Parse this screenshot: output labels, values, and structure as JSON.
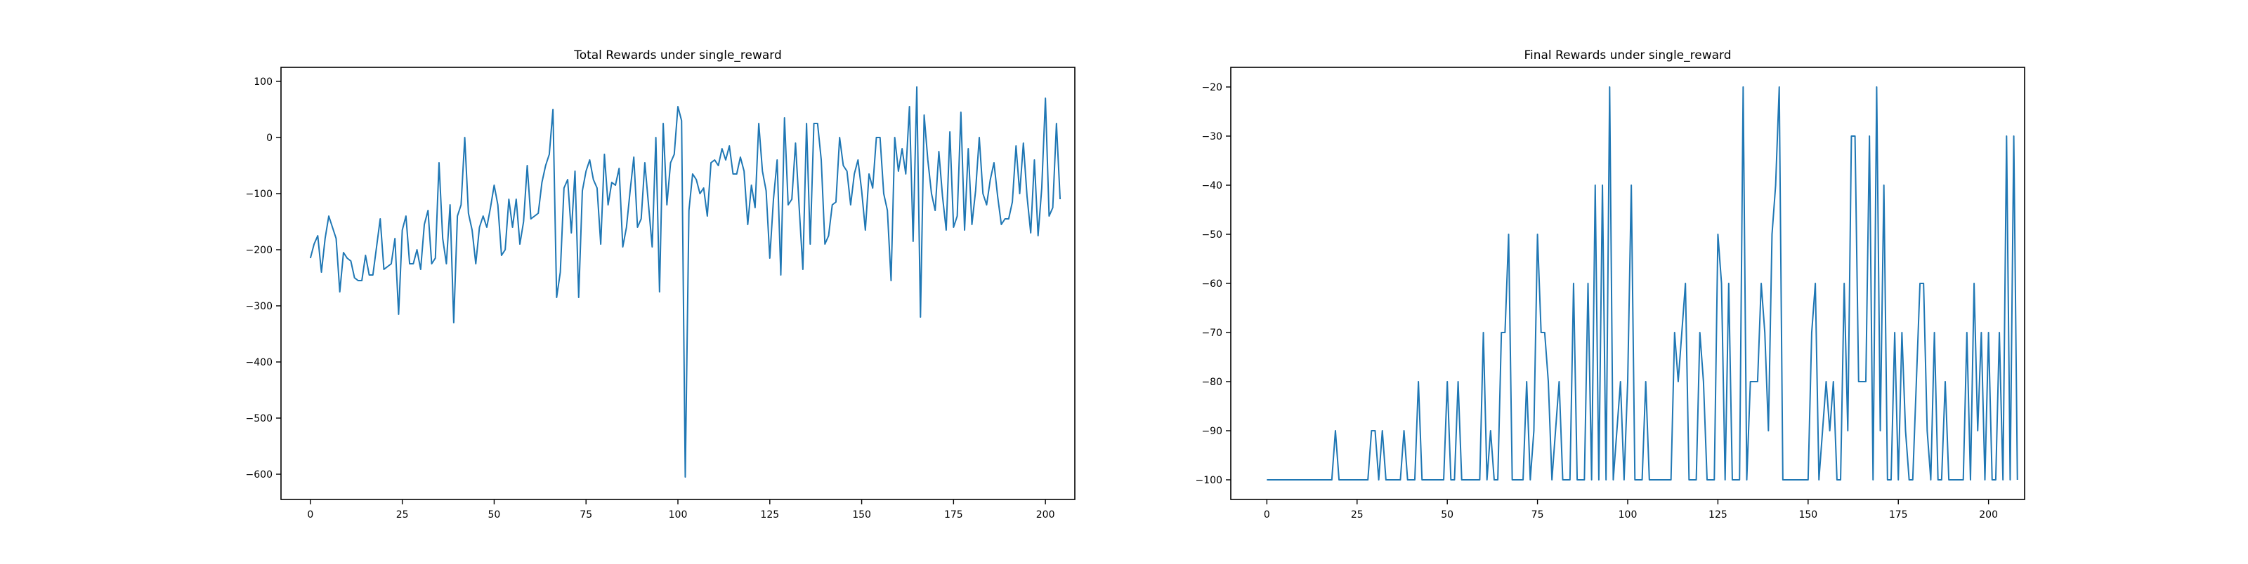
{
  "chart_data": [
    {
      "type": "line",
      "title": "Total Rewards under single_reward",
      "xlabel": "",
      "ylabel": "",
      "xlim": [
        -8,
        208
      ],
      "ylim": [
        -645,
        125
      ],
      "xticks": [
        0,
        25,
        50,
        75,
        100,
        125,
        150,
        175,
        200
      ],
      "xtick_labels": [
        "0",
        "25",
        "50",
        "75",
        "100",
        "125",
        "150",
        "175",
        "200"
      ],
      "yticks": [
        -600,
        -500,
        -400,
        -300,
        -200,
        -100,
        0,
        100
      ],
      "ytick_labels": [
        "−600",
        "−500",
        "−400",
        "−300",
        "−200",
        "−100",
        "0",
        "100"
      ],
      "grid": false,
      "color": "#1f77b4",
      "series": [
        {
          "x_start": 0,
          "values": [
            -215,
            -190,
            -175,
            -240,
            -180,
            -140,
            -160,
            -180,
            -275,
            -205,
            -215,
            -220,
            -250,
            -255,
            -255,
            -210,
            -245,
            -245,
            -195,
            -145,
            -235,
            -230,
            -225,
            -180,
            -315,
            -165,
            -140,
            -225,
            -225,
            -200,
            -235,
            -155,
            -130,
            -225,
            -215,
            -45,
            -180,
            -225,
            -120,
            -330,
            -140,
            -120,
            0,
            -135,
            -165,
            -225,
            -160,
            -140,
            -160,
            -125,
            -85,
            -120,
            -210,
            -200,
            -110,
            -160,
            -110,
            -190,
            -150,
            -50,
            -145,
            -140,
            -135,
            -80,
            -50,
            -30,
            50,
            -285,
            -240,
            -90,
            -75,
            -170,
            -60,
            -285,
            -95,
            -60,
            -40,
            -75,
            -90,
            -190,
            -30,
            -120,
            -80,
            -85,
            -55,
            -195,
            -160,
            -95,
            -35,
            -160,
            -145,
            -45,
            -120,
            -195,
            0,
            -275,
            25,
            -120,
            -45,
            -30,
            55,
            30,
            -605,
            -130,
            -65,
            -75,
            -100,
            -90,
            -140,
            -45,
            -40,
            -50,
            -20,
            -40,
            -15,
            -65,
            -65,
            -35,
            -60,
            -155,
            -85,
            -125,
            25,
            -60,
            -95,
            -215,
            -110,
            -40,
            -245,
            35,
            -120,
            -110,
            -10,
            -125,
            -235,
            25,
            -190,
            25,
            25,
            -40,
            -190,
            -175,
            -120,
            -115,
            0,
            -50,
            -60,
            -120,
            -65,
            -40,
            -95,
            -165,
            -65,
            -90,
            0,
            0,
            -100,
            -130,
            -255,
            0,
            -60,
            -20,
            -65,
            55,
            -185,
            90,
            -320,
            40,
            -40,
            -100,
            -130,
            -25,
            -105,
            -165,
            10,
            -160,
            -140,
            45,
            -165,
            -20,
            -155,
            -95,
            0,
            -100,
            -120,
            -75,
            -45,
            -105,
            -155,
            -145,
            -145,
            -115,
            -15,
            -100,
            -10,
            -105,
            -170,
            -40,
            -175,
            -90,
            70,
            -140,
            -125,
            25,
            -110
          ]
        }
      ]
    },
    {
      "type": "line",
      "title": "Final Rewards under single_reward",
      "xlabel": "",
      "ylabel": "",
      "xlim": [
        -10,
        210
      ],
      "ylim": [
        -104,
        -16
      ],
      "xticks": [
        0,
        25,
        50,
        75,
        100,
        125,
        150,
        175,
        200
      ],
      "xtick_labels": [
        "0",
        "25",
        "50",
        "75",
        "100",
        "125",
        "150",
        "175",
        "200"
      ],
      "yticks": [
        -100,
        -90,
        -80,
        -70,
        -60,
        -50,
        -40,
        -30,
        -20
      ],
      "ytick_labels": [
        "−100",
        "−90",
        "−80",
        "−70",
        "−60",
        "−50",
        "−40",
        "−30",
        "−20"
      ],
      "grid": false,
      "color": "#1f77b4",
      "series": [
        {
          "x_start": 0,
          "values": [
            -100,
            -100,
            -100,
            -100,
            -100,
            -100,
            -100,
            -100,
            -100,
            -100,
            -100,
            -100,
            -100,
            -100,
            -100,
            -100,
            -100,
            -100,
            -100,
            -90,
            -100,
            -100,
            -100,
            -100,
            -100,
            -100,
            -100,
            -100,
            -100,
            -90,
            -90,
            -100,
            -90,
            -100,
            -100,
            -100,
            -100,
            -100,
            -90,
            -100,
            -100,
            -100,
            -80,
            -100,
            -100,
            -100,
            -100,
            -100,
            -100,
            -100,
            -80,
            -100,
            -100,
            -80,
            -100,
            -100,
            -100,
            -100,
            -100,
            -100,
            -70,
            -100,
            -90,
            -100,
            -100,
            -70,
            -70,
            -50,
            -100,
            -100,
            -100,
            -100,
            -80,
            -100,
            -90,
            -50,
            -70,
            -70,
            -80,
            -100,
            -90,
            -80,
            -100,
            -100,
            -100,
            -60,
            -100,
            -100,
            -100,
            -60,
            -100,
            -40,
            -100,
            -40,
            -100,
            -20,
            -100,
            -90,
            -80,
            -100,
            -80,
            -40,
            -100,
            -100,
            -100,
            -80,
            -100,
            -100,
            -100,
            -100,
            -100,
            -100,
            -100,
            -70,
            -80,
            -70,
            -60,
            -100,
            -100,
            -100,
            -70,
            -80,
            -100,
            -100,
            -100,
            -50,
            -60,
            -100,
            -60,
            -100,
            -100,
            -100,
            -20,
            -100,
            -80,
            -80,
            -80,
            -60,
            -70,
            -90,
            -50,
            -40,
            -20,
            -100,
            -100,
            -100,
            -100,
            -100,
            -100,
            -100,
            -100,
            -70,
            -60,
            -100,
            -90,
            -80,
            -90,
            -80,
            -100,
            -100,
            -60,
            -90,
            -30,
            -30,
            -80,
            -80,
            -80,
            -30,
            -100,
            -20,
            -90,
            -40,
            -100,
            -100,
            -70,
            -100,
            -70,
            -90,
            -100,
            -100,
            -80,
            -60,
            -60,
            -90,
            -100,
            -70,
            -100,
            -100,
            -80,
            -100,
            -100,
            -100,
            -100,
            -100,
            -70,
            -100,
            -60,
            -90,
            -70,
            -100,
            -70,
            -100,
            -100,
            -70,
            -100,
            -30,
            -100,
            -30,
            -100
          ]
        }
      ]
    }
  ]
}
